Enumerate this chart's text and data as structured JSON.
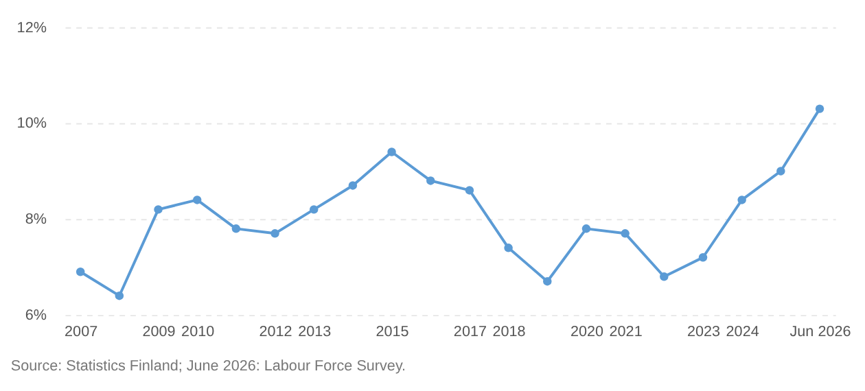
{
  "chart_data": {
    "type": "line",
    "categories": [
      "2007",
      null,
      "2009",
      "2010",
      null,
      "2012",
      "2013",
      null,
      "2015",
      null,
      "2017",
      "2018",
      null,
      "2020",
      "2021",
      null,
      "2023",
      "2024",
      null,
      "Jun 2026"
    ],
    "series": [
      {
        "color": "#5b9bd5",
        "values": [
          6.9,
          6.4,
          8.2,
          8.4,
          7.8,
          7.7,
          8.2,
          8.7,
          9.4,
          8.8,
          8.6,
          7.4,
          6.7,
          7.8,
          7.7,
          6.8,
          7.2,
          8.4,
          9.0,
          10.3
        ]
      }
    ],
    "ylim": [
      6,
      12
    ],
    "yticks": [
      {
        "value": 6,
        "label": "6%"
      },
      {
        "value": 8,
        "label": "8%"
      },
      {
        "value": 10,
        "label": "10%"
      },
      {
        "value": 12,
        "label": "12%"
      }
    ],
    "grid": "y",
    "marker": "circle",
    "line_style": "solid",
    "annotations": [
      "Source: Statistics Finland; June 2026: Labour Force Survey."
    ]
  }
}
